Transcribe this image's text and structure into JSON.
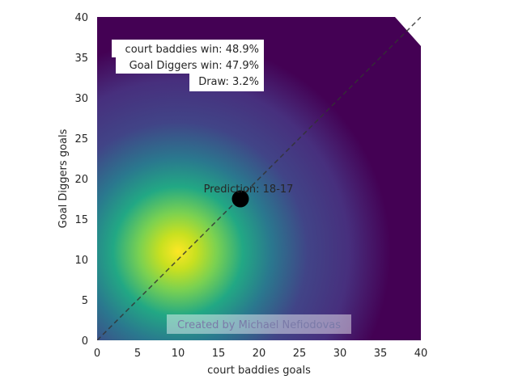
{
  "chart_data": {
    "type": "heatmap",
    "xlabel": "court baddies goals",
    "ylabel": "Goal Diggers goals",
    "xlim": [
      0,
      40
    ],
    "ylim": [
      0,
      40
    ],
    "x_ticks": [
      0,
      5,
      10,
      15,
      20,
      25,
      30,
      35,
      40
    ],
    "y_ticks": [
      0,
      5,
      10,
      15,
      20,
      25,
      30,
      35,
      40
    ],
    "grid": false,
    "colormap": "viridis",
    "density_peak": {
      "x": 10,
      "y": 11
    },
    "diagonal": {
      "from": [
        0,
        0
      ],
      "to": [
        40,
        40
      ],
      "style": "dashed",
      "color": "#333333"
    },
    "prediction": {
      "x": 17.7,
      "y": 17.5,
      "label": "Prediction: 18-17"
    },
    "probabilities": [
      {
        "label": "court baddies win: 48.9%"
      },
      {
        "label": "Goal Diggers win: 47.9%"
      },
      {
        "label": "Draw: 3.2%"
      }
    ],
    "watermark": "Created by Michael Nefiodovas"
  }
}
